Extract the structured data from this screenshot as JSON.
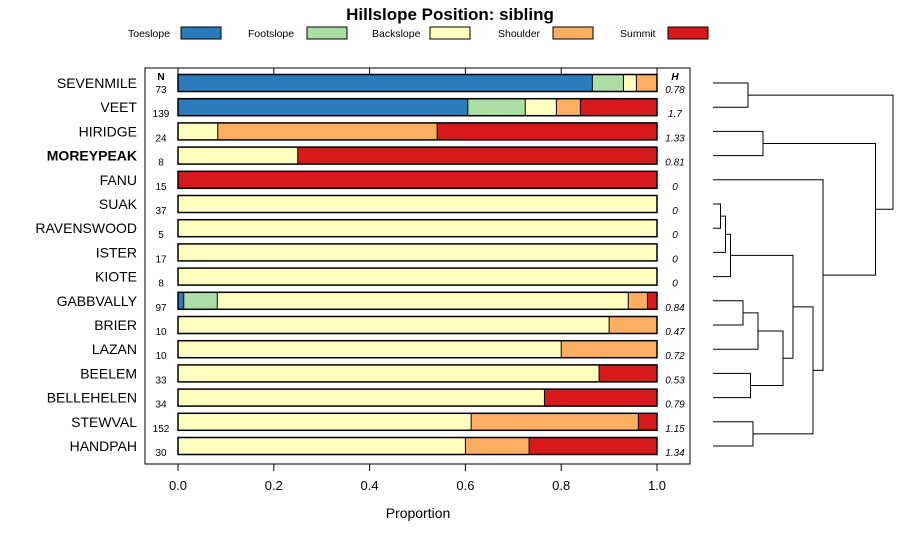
{
  "chart_data": {
    "type": "bar",
    "orientation": "horizontal",
    "stacked": true,
    "title": "Hillslope Position: sibling",
    "xlabel": "Proportion",
    "xlim": [
      0,
      1
    ],
    "x_ticks": [
      "0.0",
      "0.2",
      "0.4",
      "0.6",
      "0.8",
      "1.0"
    ],
    "n_header": "N",
    "h_header": "H",
    "legend_position": "top",
    "series": [
      {
        "name": "Toeslope",
        "color": "#2b7bba"
      },
      {
        "name": "Footslope",
        "color": "#abdda4"
      },
      {
        "name": "Backslope",
        "color": "#ffffbf"
      },
      {
        "name": "Shoulder",
        "color": "#fdae61"
      },
      {
        "name": "Summit",
        "color": "#d7191c"
      }
    ],
    "categories": [
      {
        "label": "SEVENMILE",
        "bold": false,
        "n": "73",
        "h": "0.78",
        "values": [
          0.865,
          0.065,
          0.027,
          0.043,
          0.0
        ]
      },
      {
        "label": "VEET",
        "bold": false,
        "n": "139",
        "h": "1.7",
        "values": [
          0.605,
          0.12,
          0.065,
          0.05,
          0.16
        ]
      },
      {
        "label": "HIRIDGE",
        "bold": false,
        "n": "24",
        "h": "1.33",
        "values": [
          0.0,
          0.0,
          0.083,
          0.458,
          0.459
        ]
      },
      {
        "label": "MOREYPEAK",
        "bold": true,
        "n": "8",
        "h": "0.81",
        "values": [
          0.0,
          0.0,
          0.25,
          0.0,
          0.75
        ]
      },
      {
        "label": "FANU",
        "bold": false,
        "n": "15",
        "h": "0",
        "values": [
          0.0,
          0.0,
          0.0,
          0.0,
          1.0
        ]
      },
      {
        "label": "SUAK",
        "bold": false,
        "n": "37",
        "h": "0",
        "values": [
          0.0,
          0.0,
          1.0,
          0.0,
          0.0
        ]
      },
      {
        "label": "RAVENSWOOD",
        "bold": false,
        "n": "5",
        "h": "0",
        "values": [
          0.0,
          0.0,
          1.0,
          0.0,
          0.0
        ]
      },
      {
        "label": "ISTER",
        "bold": false,
        "n": "17",
        "h": "0",
        "values": [
          0.0,
          0.0,
          1.0,
          0.0,
          0.0
        ]
      },
      {
        "label": "KIOTE",
        "bold": false,
        "n": "8",
        "h": "0",
        "values": [
          0.0,
          0.0,
          1.0,
          0.0,
          0.0
        ]
      },
      {
        "label": "GABBVALLY",
        "bold": false,
        "n": "97",
        "h": "0.84",
        "values": [
          0.012,
          0.07,
          0.858,
          0.04,
          0.02
        ]
      },
      {
        "label": "BRIER",
        "bold": false,
        "n": "10",
        "h": "0.47",
        "values": [
          0.0,
          0.0,
          0.9,
          0.1,
          0.0
        ]
      },
      {
        "label": "LAZAN",
        "bold": false,
        "n": "10",
        "h": "0.72",
        "values": [
          0.0,
          0.0,
          0.8,
          0.2,
          0.0
        ]
      },
      {
        "label": "BEELEM",
        "bold": false,
        "n": "33",
        "h": "0.53",
        "values": [
          0.0,
          0.0,
          0.879,
          0.0,
          0.121
        ]
      },
      {
        "label": "BELLEHELEN",
        "bold": false,
        "n": "34",
        "h": "0.79",
        "values": [
          0.0,
          0.0,
          0.765,
          0.0,
          0.235
        ]
      },
      {
        "label": "STEWVAL",
        "bold": false,
        "n": "152",
        "h": "1.15",
        "values": [
          0.0,
          0.0,
          0.612,
          0.349,
          0.039
        ]
      },
      {
        "label": "HANDPAH",
        "bold": false,
        "n": "30",
        "h": "1.34",
        "values": [
          0.0,
          0.0,
          0.6,
          0.133,
          0.267
        ]
      }
    ],
    "dendrogram": {
      "merges": [
        [
          -1,
          -2,
          0.14
        ],
        [
          -3,
          -4,
          0.2
        ],
        [
          -6,
          -7,
          0.03
        ],
        [
          -8,
          3,
          0.05
        ],
        [
          -9,
          4,
          0.07
        ],
        [
          -10,
          -11,
          0.12
        ],
        [
          6,
          -12,
          0.18
        ],
        [
          -13,
          -14,
          0.15
        ],
        [
          7,
          8,
          0.28
        ],
        [
          5,
          9,
          0.32
        ],
        [
          -15,
          -16,
          0.16
        ],
        [
          10,
          11,
          0.4
        ],
        [
          -5,
          12,
          0.44
        ],
        [
          2,
          13,
          0.65
        ],
        [
          1,
          14,
          0.72
        ]
      ],
      "max_height": 0.72
    }
  }
}
